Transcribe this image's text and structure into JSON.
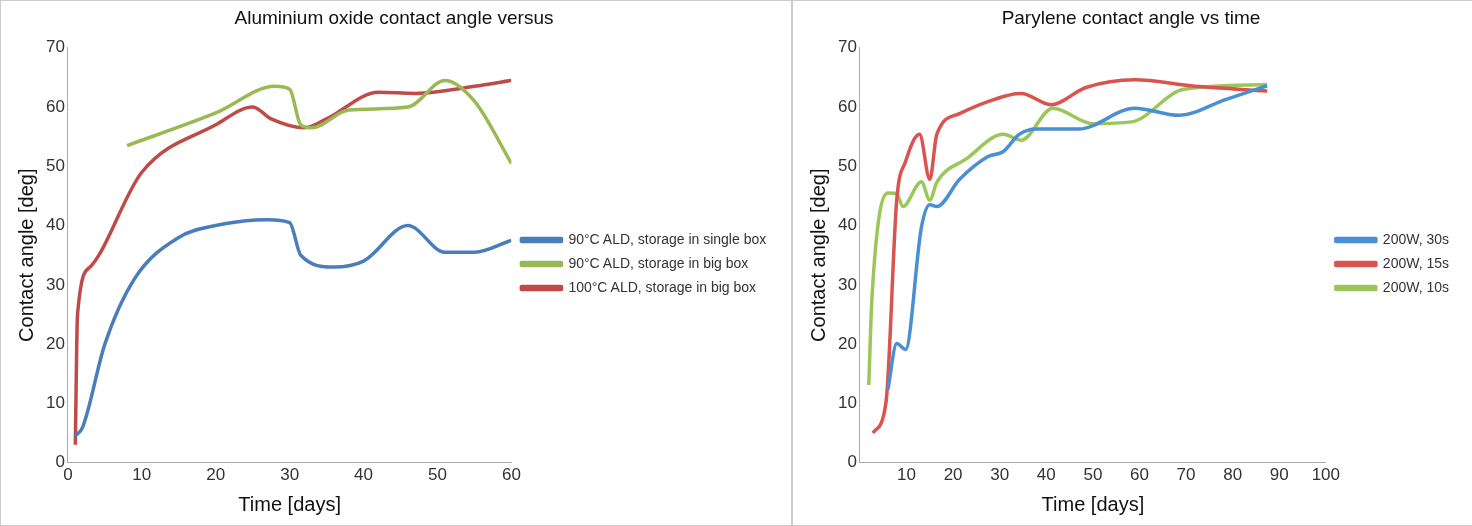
{
  "chart_data": [
    {
      "type": "line",
      "title": "Aluminium oxide contact angle versus",
      "xlabel": "Time [days]",
      "ylabel": "Contact angle [deg]",
      "xlim": [
        0,
        60
      ],
      "xticks": [
        0,
        10,
        20,
        30,
        40,
        50,
        60
      ],
      "ylim": [
        0,
        70
      ],
      "yticks": [
        0,
        10,
        20,
        30,
        40,
        50,
        60,
        70
      ],
      "grid": false,
      "legend": "right",
      "marker": "none",
      "series": [
        {
          "name": "90°C ALD, storage in single box",
          "color": "#4a7ebb",
          "x": [
            1,
            2,
            5,
            9,
            15,
            20,
            27,
            30,
            31.5,
            36,
            40,
            46,
            51,
            55,
            60
          ],
          "values": [
            4.5,
            6,
            20,
            31,
            38,
            40,
            41,
            40.5,
            35,
            33,
            34,
            40,
            35.5,
            35.5,
            37.5
          ]
        },
        {
          "name": "90°C ALD, storage in big box",
          "color": "#98b954",
          "x": [
            8,
            20,
            28,
            30,
            31.5,
            33,
            38,
            46,
            51,
            55,
            60
          ],
          "values": [
            53.5,
            59,
            63.5,
            63,
            57,
            56.5,
            59.5,
            60,
            64.5,
            61,
            50.5
          ]
        },
        {
          "name": "100°C ALD, storage in big box",
          "color": "#be4b48",
          "x": [
            1,
            1.3,
            3,
            10,
            20,
            25,
            27.5,
            32,
            35,
            42,
            47,
            55,
            60
          ],
          "values": [
            3,
            25,
            33,
            49,
            57,
            60,
            58,
            56.5,
            58,
            62.5,
            62.3,
            63.5,
            64.5
          ]
        }
      ]
    },
    {
      "type": "line",
      "title": "Parylene contact angle vs time",
      "xlabel": "Time [days]",
      "ylabel": "Contact angle [deg]",
      "xlim": [
        0,
        100
      ],
      "xticks": [
        10,
        20,
        30,
        40,
        50,
        60,
        70,
        80,
        90,
        100
      ],
      "ylim": [
        0,
        70
      ],
      "yticks": [
        0,
        10,
        20,
        30,
        40,
        50,
        60,
        70
      ],
      "grid": false,
      "legend": "right",
      "marker": "none",
      "series": [
        {
          "name": "200W, 30s",
          "color": "#4a8fd4",
          "x": [
            6,
            7.9,
            9.8,
            13.2,
            15,
            16.5,
            21.4,
            27.4,
            30.8,
            34.2,
            38,
            47,
            59,
            68.4,
            78.6,
            87.4
          ],
          "values": [
            12.3,
            20.1,
            19.1,
            39.7,
            43.5,
            43.2,
            47.8,
            51.6,
            52.5,
            55.4,
            56.3,
            56.3,
            59.8,
            58.6,
            61.3,
            63.6
          ]
        },
        {
          "name": "200W, 15s",
          "color": "#d9534f",
          "x": [
            2.8,
            5.6,
            7.9,
            9.8,
            12.8,
            15,
            16.5,
            21.4,
            28.9,
            34.6,
            41,
            48.5,
            59,
            71,
            87.4
          ],
          "values": [
            5,
            10.2,
            44.3,
            50.8,
            55.4,
            47.8,
            55.4,
            58.9,
            61.3,
            62.3,
            60.4,
            63.3,
            64.6,
            63.6,
            62.7
          ]
        },
        {
          "name": "200W, 10s",
          "color": "#9bc65a",
          "x": [
            1.9,
            2.6,
            6,
            7.9,
            9.2,
            13.2,
            15,
            16.5,
            22.9,
            30.8,
            34.6,
            41.4,
            50,
            58.3,
            69.5,
            87.4
          ],
          "values": [
            13.1,
            28,
            45.5,
            45.4,
            43.2,
            47.4,
            44.3,
            47.3,
            51.3,
            55.4,
            54.4,
            59.8,
            57.2,
            57.5,
            63,
            63.8
          ]
        }
      ]
    }
  ]
}
